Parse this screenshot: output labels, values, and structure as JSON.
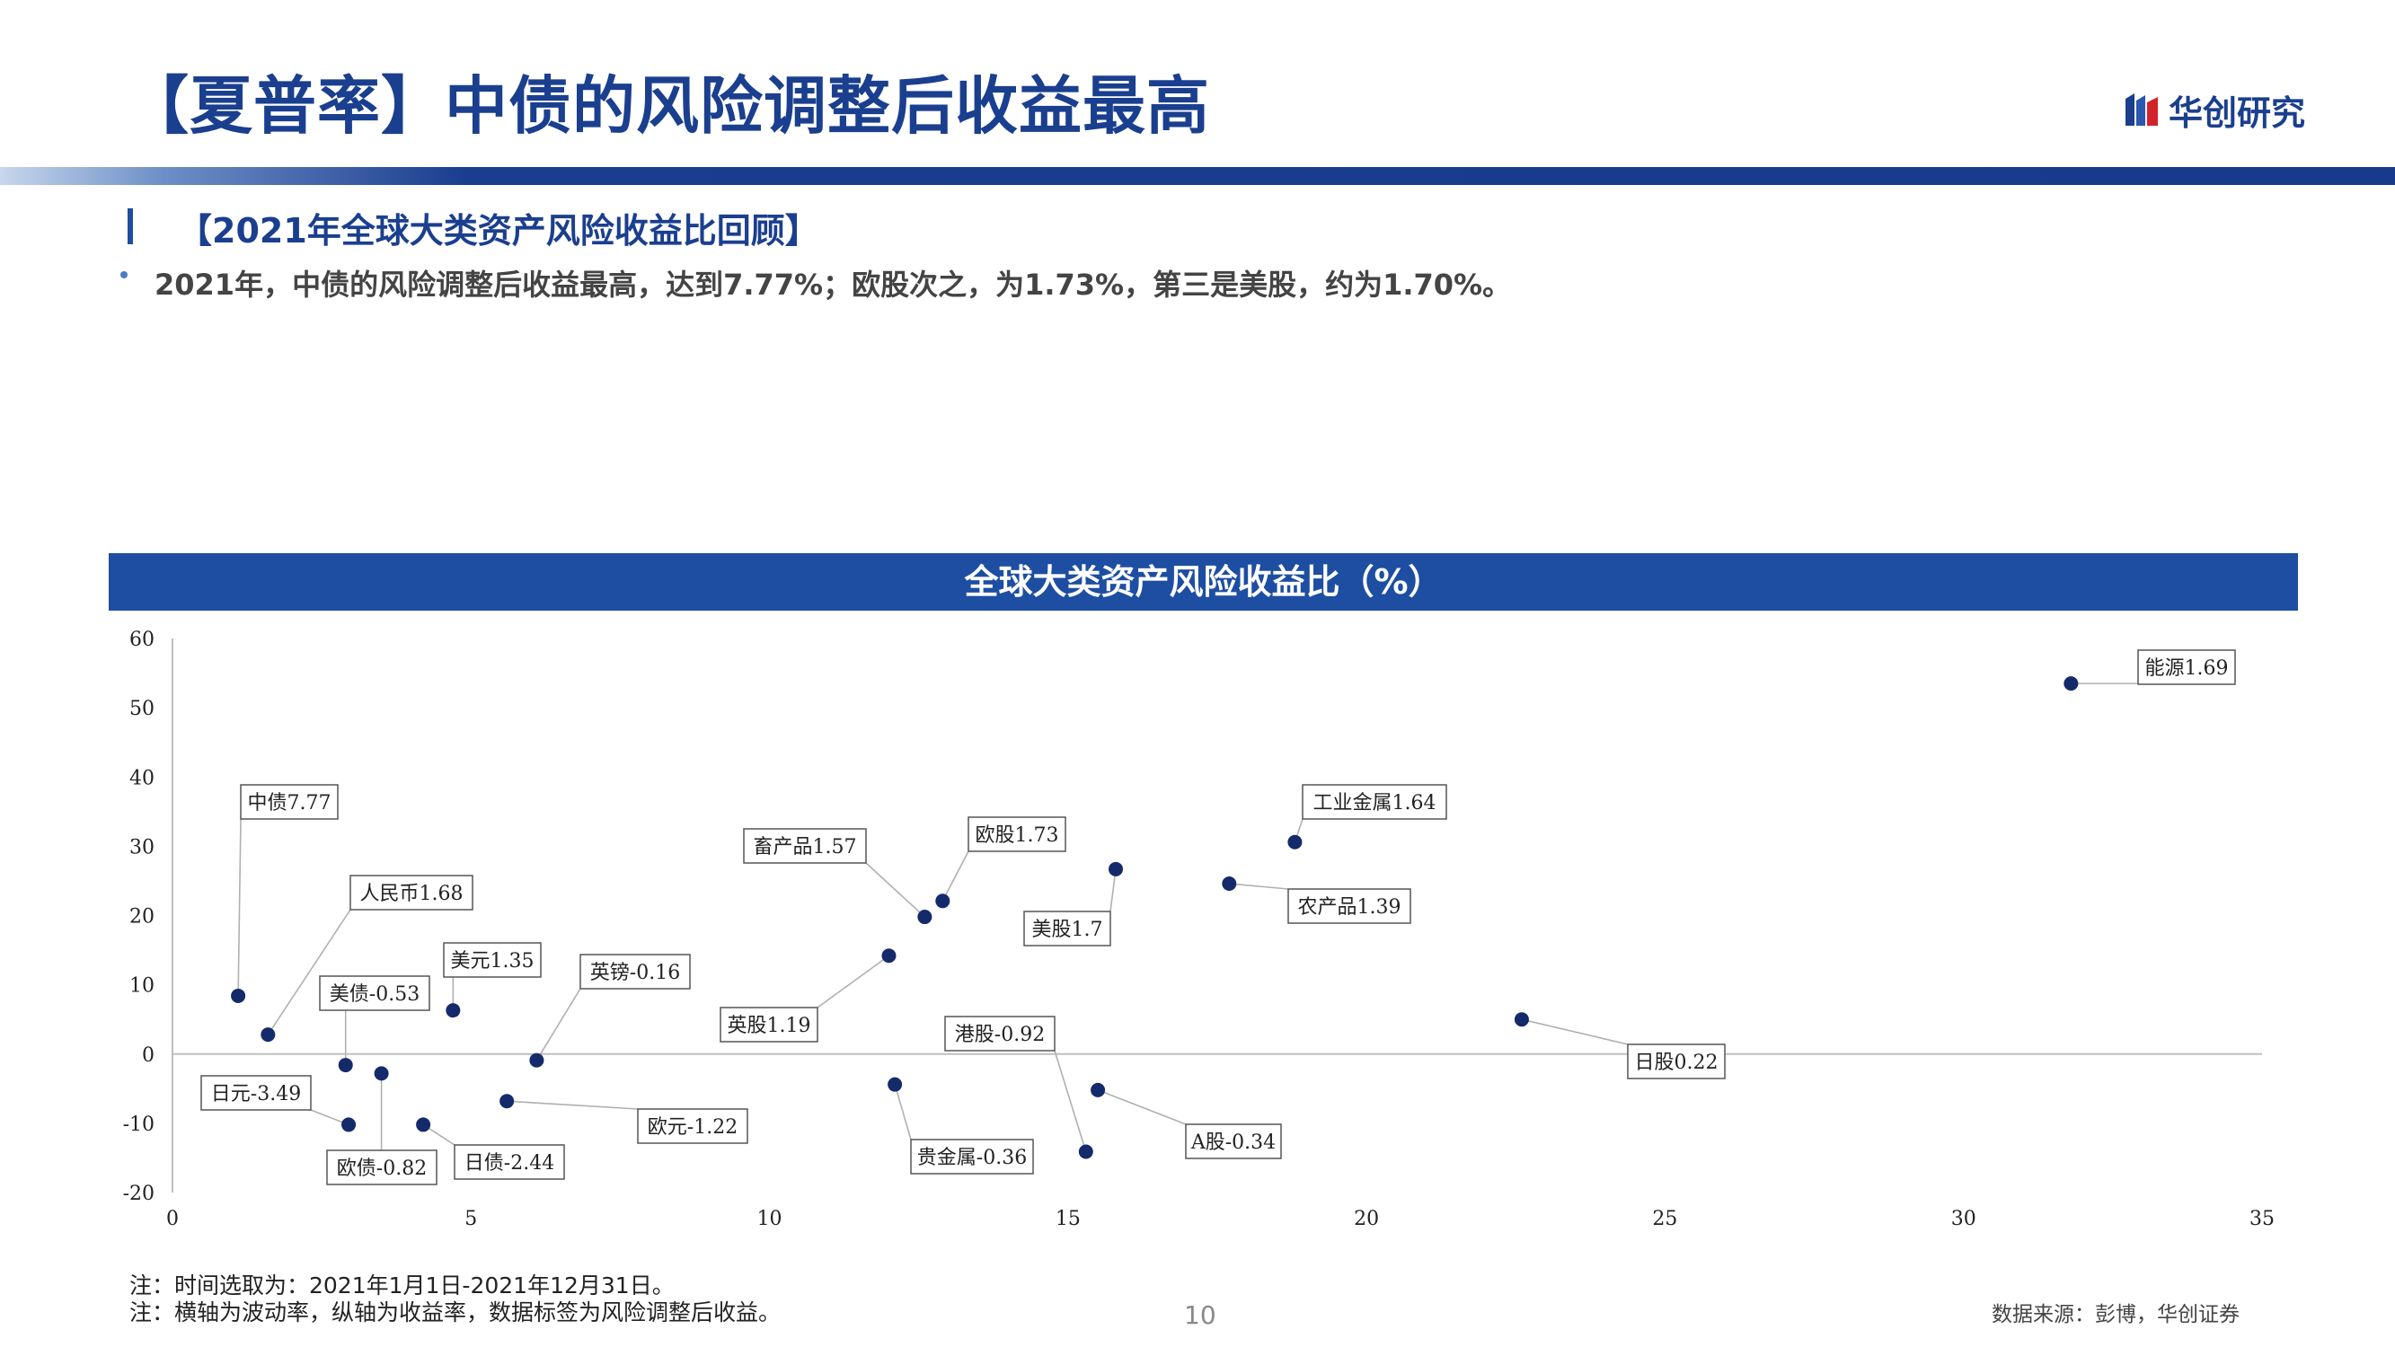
{
  "page_title": "【夏普率】中债的风险调整后收益最高",
  "logo_text": "华创研究",
  "section_title": "【2021年全球大类资产风险收益比回顾】",
  "bullet": "2021年，中债的风险调整后收益最高，达到7.77%；欧股次之，为1.73%，第三是美股，约为1.70%。",
  "chart_header": "全球大类资产风险收益比（%）",
  "notes": [
    "注：时间选取为：2021年1月1日-2021年12月31日。",
    "注：横轴为波动率，纵轴为收益率，数据标签为风险调整后收益。"
  ],
  "source": "数据来源：彭博，华创证券",
  "page_number": "10",
  "colors": {
    "primary": "#1b3f8f",
    "header_bg": "#1d4ea2",
    "point": "#142a6b"
  },
  "chart_data": {
    "type": "scatter",
    "title": "全球大类资产风险收益比（%）",
    "xlabel": "",
    "ylabel": "",
    "xlim": [
      0,
      35
    ],
    "ylim": [
      -20,
      60
    ],
    "xticks": [
      0,
      5,
      10,
      15,
      20,
      25,
      30,
      35
    ],
    "yticks": [
      -20,
      -10,
      0,
      10,
      20,
      30,
      40,
      50,
      60
    ],
    "grid": false,
    "points": [
      {
        "label": "中债7.77",
        "x": 1.1,
        "y": 8.4
      },
      {
        "label": "人民币1.68",
        "x": 1.6,
        "y": 2.8
      },
      {
        "label": "美债-0.53",
        "x": 2.9,
        "y": -1.6
      },
      {
        "label": "日元-3.49",
        "x": 2.95,
        "y": -10.2
      },
      {
        "label": "欧债-0.82",
        "x": 3.5,
        "y": -2.8
      },
      {
        "label": "日债-2.44",
        "x": 4.2,
        "y": -10.2
      },
      {
        "label": "美元1.35",
        "x": 4.7,
        "y": 6.3
      },
      {
        "label": "欧元-1.22",
        "x": 5.6,
        "y": -6.8
      },
      {
        "label": "英镑-0.16",
        "x": 6.1,
        "y": -0.9
      },
      {
        "label": "英股1.19",
        "x": 12.0,
        "y": 14.2
      },
      {
        "label": "贵金属-0.36",
        "x": 12.1,
        "y": -4.4
      },
      {
        "label": "畜产品1.57",
        "x": 12.6,
        "y": 19.8
      },
      {
        "label": "欧股1.73",
        "x": 12.9,
        "y": 22.1
      },
      {
        "label": "A股-0.34",
        "x": 15.5,
        "y": -5.2
      },
      {
        "label": "港股-0.92",
        "x": 15.3,
        "y": -14.1
      },
      {
        "label": "美股1.7",
        "x": 15.8,
        "y": 26.7
      },
      {
        "label": "农产品1.39",
        "x": 17.7,
        "y": 24.6
      },
      {
        "label": "工业金属1.64",
        "x": 18.8,
        "y": 30.6
      },
      {
        "label": "日股0.22",
        "x": 22.6,
        "y": 5.0
      },
      {
        "label": "能源1.69",
        "x": 31.8,
        "y": 53.5
      }
    ]
  }
}
